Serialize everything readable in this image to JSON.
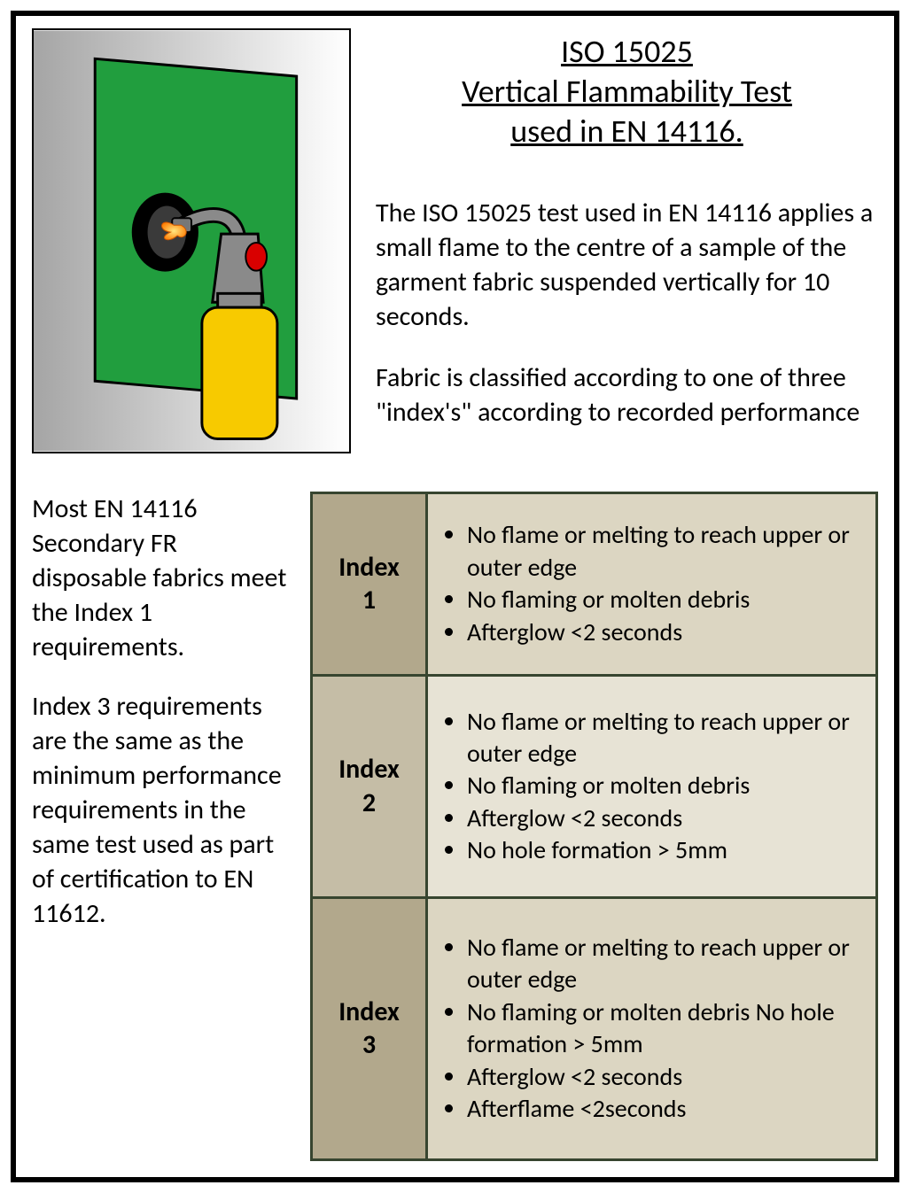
{
  "title": {
    "line1": "ISO 15025",
    "line2": "Vertical Flammability Test",
    "line3": "used in EN 14116.",
    "fontsize": 36,
    "underline": true
  },
  "description": {
    "p1": "The ISO 15025 test used in EN 14116 applies a small flame to the centre of a sample of the garment fabric suspended vertically for 10 seconds.",
    "p2": "Fabric is classified according to one of three \"index's\" according to recorded performance",
    "fontsize": 30
  },
  "sideText": {
    "p1": "Most EN 14116 Secondary FR disposable fabrics meet the Index 1 requirements.",
    "p2": "Index 3 requirements are the same as the minimum performance requirements in the same test used as part of certification to EN 11612.",
    "fontsize": 30
  },
  "table": {
    "border_color": "#37452f",
    "rows": [
      {
        "label": "Index 1",
        "label_bg": "#b2a88c",
        "criteria_bg": "#dcd6c2",
        "items": [
          "No flame or melting to reach upper or outer edge",
          "No flaming or molten debris",
          "Afterglow <2 seconds"
        ]
      },
      {
        "label": "Index 2",
        "label_bg": "#c5bda6",
        "criteria_bg": "#e7e3d5",
        "items": [
          "No flame or melting to reach upper or outer edge",
          "No flaming or molten debris",
          "Afterglow <2 seconds",
          "No hole formation > 5mm"
        ]
      },
      {
        "label": "Index 3",
        "label_bg": "#b2a88c",
        "criteria_bg": "#dcd6c2",
        "items": [
          "No flame or melting to reach upper or outer edge",
          "No flaming or molten debris No hole formation > 5mm",
          "Afterglow <2 seconds",
          "Afterflame <2seconds"
        ]
      }
    ]
  },
  "diagram": {
    "background_gradient": [
      "#a5a5a5",
      "#ffffff"
    ],
    "sample_color": "#219e3e",
    "sample_stroke": "#000000",
    "hole_outer": "#000000",
    "hole_inner": "#333333",
    "torch_body": "#888888",
    "torch_button": "#d90000",
    "canister": "#f7ca00",
    "flame_colors": [
      "#ff7b00",
      "#ffe680"
    ]
  }
}
